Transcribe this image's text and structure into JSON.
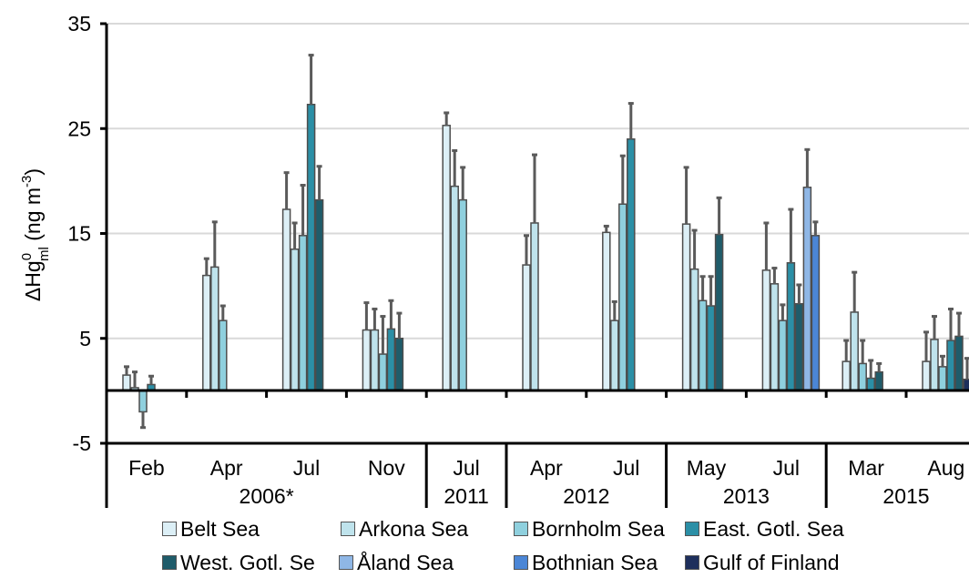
{
  "chart_data": {
    "type": "bar",
    "ylabel": {
      "delta": "Δ",
      "base": "Hg",
      "sup1": "0",
      "sub": "ml",
      "unit_open": " (ng m",
      "sup2": "-3",
      "unit_close": ")"
    },
    "ylim": [
      -5,
      35
    ],
    "yticks": [
      -5,
      5,
      15,
      25,
      35
    ],
    "grid": true,
    "legend_position": "bottom",
    "series": [
      {
        "name": "Belt Sea",
        "color": "#dcefF6"
      },
      {
        "name": "Arkona Sea",
        "color": "#bfe3ec"
      },
      {
        "name": "Bornholm Sea",
        "color": "#8fd0de"
      },
      {
        "name": "East. Gotl. Sea",
        "color": "#2b8fa6"
      },
      {
        "name": "West. Gotl. Se",
        "color": "#1f5c6a"
      },
      {
        "name": "Åland Sea",
        "color": "#8fb7e6"
      },
      {
        "name": "Bothnian Sea",
        "color": "#4b86d6"
      },
      {
        "name": "Gulf of Finland",
        "color": "#1e2f5c"
      }
    ],
    "groups": [
      {
        "month": "Feb",
        "bars": [
          {
            "s": 0,
            "v": 1.5,
            "e": 0.8
          },
          {
            "s": 1,
            "v": 0.3,
            "e": 1.5
          },
          {
            "s": 2,
            "v": -2.0,
            "e": 1.5
          },
          {
            "s": 3,
            "v": 0.6,
            "e": 0.8
          }
        ]
      },
      {
        "month": "Apr",
        "bars": [
          {
            "s": 0,
            "v": 11.0,
            "e": 1.6
          },
          {
            "s": 1,
            "v": 11.8,
            "e": 4.3
          },
          {
            "s": 2,
            "v": 6.7,
            "e": 1.4
          }
        ]
      },
      {
        "month": "Jul",
        "bars": [
          {
            "s": 0,
            "v": 17.3,
            "e": 3.5
          },
          {
            "s": 1,
            "v": 13.5,
            "e": 2.5
          },
          {
            "s": 2,
            "v": 14.8,
            "e": 4.8
          },
          {
            "s": 3,
            "v": 27.3,
            "e": 4.7
          },
          {
            "s": 4,
            "v": 18.2,
            "e": 3.2
          }
        ]
      },
      {
        "month": "Nov",
        "bars": [
          {
            "s": 0,
            "v": 5.8,
            "e": 2.6
          },
          {
            "s": 1,
            "v": 5.8,
            "e": 2.0
          },
          {
            "s": 2,
            "v": 3.5,
            "e": 3.6
          },
          {
            "s": 3,
            "v": 5.9,
            "e": 2.7
          },
          {
            "s": 4,
            "v": 5.0,
            "e": 2.4
          }
        ]
      },
      {
        "month": "Jul",
        "bars": [
          {
            "s": 0,
            "v": 25.3,
            "e": 1.2
          },
          {
            "s": 1,
            "v": 19.5,
            "e": 3.4
          },
          {
            "s": 2,
            "v": 18.2,
            "e": 3.1
          }
        ]
      },
      {
        "month": "Apr",
        "bars": [
          {
            "s": 0,
            "v": 12.0,
            "e": 2.8
          },
          {
            "s": 1,
            "v": 16.0,
            "e": 6.5
          }
        ]
      },
      {
        "month": "Jul",
        "bars": [
          {
            "s": 0,
            "v": 15.1,
            "e": 0.6
          },
          {
            "s": 1,
            "v": 6.7,
            "e": 1.8
          },
          {
            "s": 2,
            "v": 17.8,
            "e": 4.6
          },
          {
            "s": 3,
            "v": 24.0,
            "e": 3.4
          }
        ]
      },
      {
        "month": "May",
        "bars": [
          {
            "s": 0,
            "v": 15.9,
            "e": 5.4
          },
          {
            "s": 1,
            "v": 11.6,
            "e": 3.7
          },
          {
            "s": 2,
            "v": 8.6,
            "e": 2.3
          },
          {
            "s": 3,
            "v": 8.1,
            "e": 2.8
          },
          {
            "s": 4,
            "v": 14.9,
            "e": 3.5
          }
        ]
      },
      {
        "month": "Jul",
        "bars": [
          {
            "s": 0,
            "v": 11.5,
            "e": 4.5
          },
          {
            "s": 1,
            "v": 10.2,
            "e": 1.5
          },
          {
            "s": 2,
            "v": 6.7,
            "e": 1.5
          },
          {
            "s": 3,
            "v": 12.2,
            "e": 5.1
          },
          {
            "s": 4,
            "v": 8.3,
            "e": 1.8
          },
          {
            "s": 5,
            "v": 19.4,
            "e": 3.6
          },
          {
            "s": 6,
            "v": 14.8,
            "e": 1.3
          }
        ]
      },
      {
        "month": "Mar",
        "bars": [
          {
            "s": 0,
            "v": 2.8,
            "e": 2.0
          },
          {
            "s": 1,
            "v": 7.5,
            "e": 3.8
          },
          {
            "s": 2,
            "v": 2.6,
            "e": 2.2
          },
          {
            "s": 3,
            "v": 1.2,
            "e": 1.7
          },
          {
            "s": 4,
            "v": 1.8,
            "e": 0.8
          }
        ]
      },
      {
        "month": "Aug",
        "bars": [
          {
            "s": 0,
            "v": 2.8,
            "e": 2.8
          },
          {
            "s": 1,
            "v": 4.9,
            "e": 2.2
          },
          {
            "s": 2,
            "v": 2.3,
            "e": 1.0
          },
          {
            "s": 3,
            "v": 4.8,
            "e": 3.0
          },
          {
            "s": 4,
            "v": 5.2,
            "e": 2.2
          },
          {
            "s": 7,
            "v": 1.1,
            "e": 2.0
          }
        ]
      }
    ],
    "years": [
      {
        "label": "2006*",
        "first_group": 0,
        "last_group": 3
      },
      {
        "label": "2011",
        "first_group": 4,
        "last_group": 4
      },
      {
        "label": "2012",
        "first_group": 5,
        "last_group": 6
      },
      {
        "label": "2013",
        "first_group": 7,
        "last_group": 8
      },
      {
        "label": "2015",
        "first_group": 9,
        "last_group": 10
      }
    ]
  }
}
